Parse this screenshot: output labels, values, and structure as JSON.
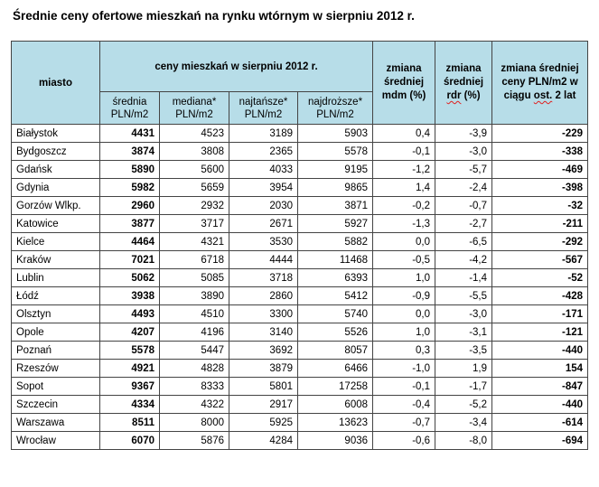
{
  "title": "Średnie ceny ofertowe mieszkań na rynku wtórnym w sierpniu 2012  r.",
  "headers": {
    "miasto": "miasto",
    "group": "ceny mieszkań w sierpniu 2012 r.",
    "srednia": "średnia PLN/m2",
    "mediana": "mediana* PLN/m2",
    "najtansze": "najtańsze* PLN/m2",
    "najdrozsze": "najdroższe* PLN/m2",
    "mdm_pre": "zmiana średniej",
    "mdm_post": "mdm (%)",
    "rdr_pre": "zmiana średniej",
    "rdr_word": "rdr",
    "rdr_post": " (%)",
    "lat2_pre": "zmiana średniej ceny PLN/m2 w ciągu ",
    "lat2_word": "ost.",
    "lat2_post": " 2 lat"
  },
  "rows": [
    {
      "city": "Białystok",
      "srednia": "4431",
      "mediana": "4523",
      "najtansze": "3189",
      "najdrozsze": "5903",
      "mdm": "0,4",
      "rdr": "-3,9",
      "lat2": "-229"
    },
    {
      "city": "Bydgoszcz",
      "srednia": "3874",
      "mediana": "3808",
      "najtansze": "2365",
      "najdrozsze": "5578",
      "mdm": "-0,1",
      "rdr": "-3,0",
      "lat2": "-338"
    },
    {
      "city": "Gdańsk",
      "srednia": "5890",
      "mediana": "5600",
      "najtansze": "4033",
      "najdrozsze": "9195",
      "mdm": "-1,2",
      "rdr": "-5,7",
      "lat2": "-469"
    },
    {
      "city": "Gdynia",
      "srednia": "5982",
      "mediana": "5659",
      "najtansze": "3954",
      "najdrozsze": "9865",
      "mdm": "1,4",
      "rdr": "-2,4",
      "lat2": "-398"
    },
    {
      "city": "Gorzów Wlkp.",
      "srednia": "2960",
      "mediana": "2932",
      "najtansze": "2030",
      "najdrozsze": "3871",
      "mdm": "-0,2",
      "rdr": "-0,7",
      "lat2": "-32"
    },
    {
      "city": "Katowice",
      "srednia": "3877",
      "mediana": "3717",
      "najtansze": "2671",
      "najdrozsze": "5927",
      "mdm": "-1,3",
      "rdr": "-2,7",
      "lat2": "-211"
    },
    {
      "city": "Kielce",
      "srednia": "4464",
      "mediana": "4321",
      "najtansze": "3530",
      "najdrozsze": "5882",
      "mdm": "0,0",
      "rdr": "-6,5",
      "lat2": "-292"
    },
    {
      "city": "Kraków",
      "srednia": "7021",
      "mediana": "6718",
      "najtansze": "4444",
      "najdrozsze": "11468",
      "mdm": "-0,5",
      "rdr": "-4,2",
      "lat2": "-567"
    },
    {
      "city": "Lublin",
      "srednia": "5062",
      "mediana": "5085",
      "najtansze": "3718",
      "najdrozsze": "6393",
      "mdm": "1,0",
      "rdr": "-1,4",
      "lat2": "-52"
    },
    {
      "city": "Łódź",
      "srednia": "3938",
      "mediana": "3890",
      "najtansze": "2860",
      "najdrozsze": "5412",
      "mdm": "-0,9",
      "rdr": "-5,5",
      "lat2": "-428"
    },
    {
      "city": "Olsztyn",
      "srednia": "4493",
      "mediana": "4510",
      "najtansze": "3300",
      "najdrozsze": "5740",
      "mdm": "0,0",
      "rdr": "-3,0",
      "lat2": "-171"
    },
    {
      "city": "Opole",
      "srednia": "4207",
      "mediana": "4196",
      "najtansze": "3140",
      "najdrozsze": "5526",
      "mdm": "1,0",
      "rdr": "-3,1",
      "lat2": "-121"
    },
    {
      "city": "Poznań",
      "srednia": "5578",
      "mediana": "5447",
      "najtansze": "3692",
      "najdrozsze": "8057",
      "mdm": "0,3",
      "rdr": "-3,5",
      "lat2": "-440"
    },
    {
      "city": "Rzeszów",
      "srednia": "4921",
      "mediana": "4828",
      "najtansze": "3879",
      "najdrozsze": "6466",
      "mdm": "-1,0",
      "rdr": "1,9",
      "lat2": "154"
    },
    {
      "city": "Sopot",
      "srednia": "9367",
      "mediana": "8333",
      "najtansze": "5801",
      "najdrozsze": "17258",
      "mdm": "-0,1",
      "rdr": "-1,7",
      "lat2": "-847"
    },
    {
      "city": "Szczecin",
      "srednia": "4334",
      "mediana": "4322",
      "najtansze": "2917",
      "najdrozsze": "6008",
      "mdm": "-0,4",
      "rdr": "-5,2",
      "lat2": "-440"
    },
    {
      "city": "Warszawa",
      "srednia": "8511",
      "mediana": "8000",
      "najtansze": "5925",
      "najdrozsze": "13623",
      "mdm": "-0,7",
      "rdr": "-3,4",
      "lat2": "-614"
    },
    {
      "city": "Wrocław",
      "srednia": "6070",
      "mediana": "5876",
      "najtansze": "4284",
      "najdrozsze": "9036",
      "mdm": "-0,6",
      "rdr": "-8,0",
      "lat2": "-694"
    }
  ]
}
